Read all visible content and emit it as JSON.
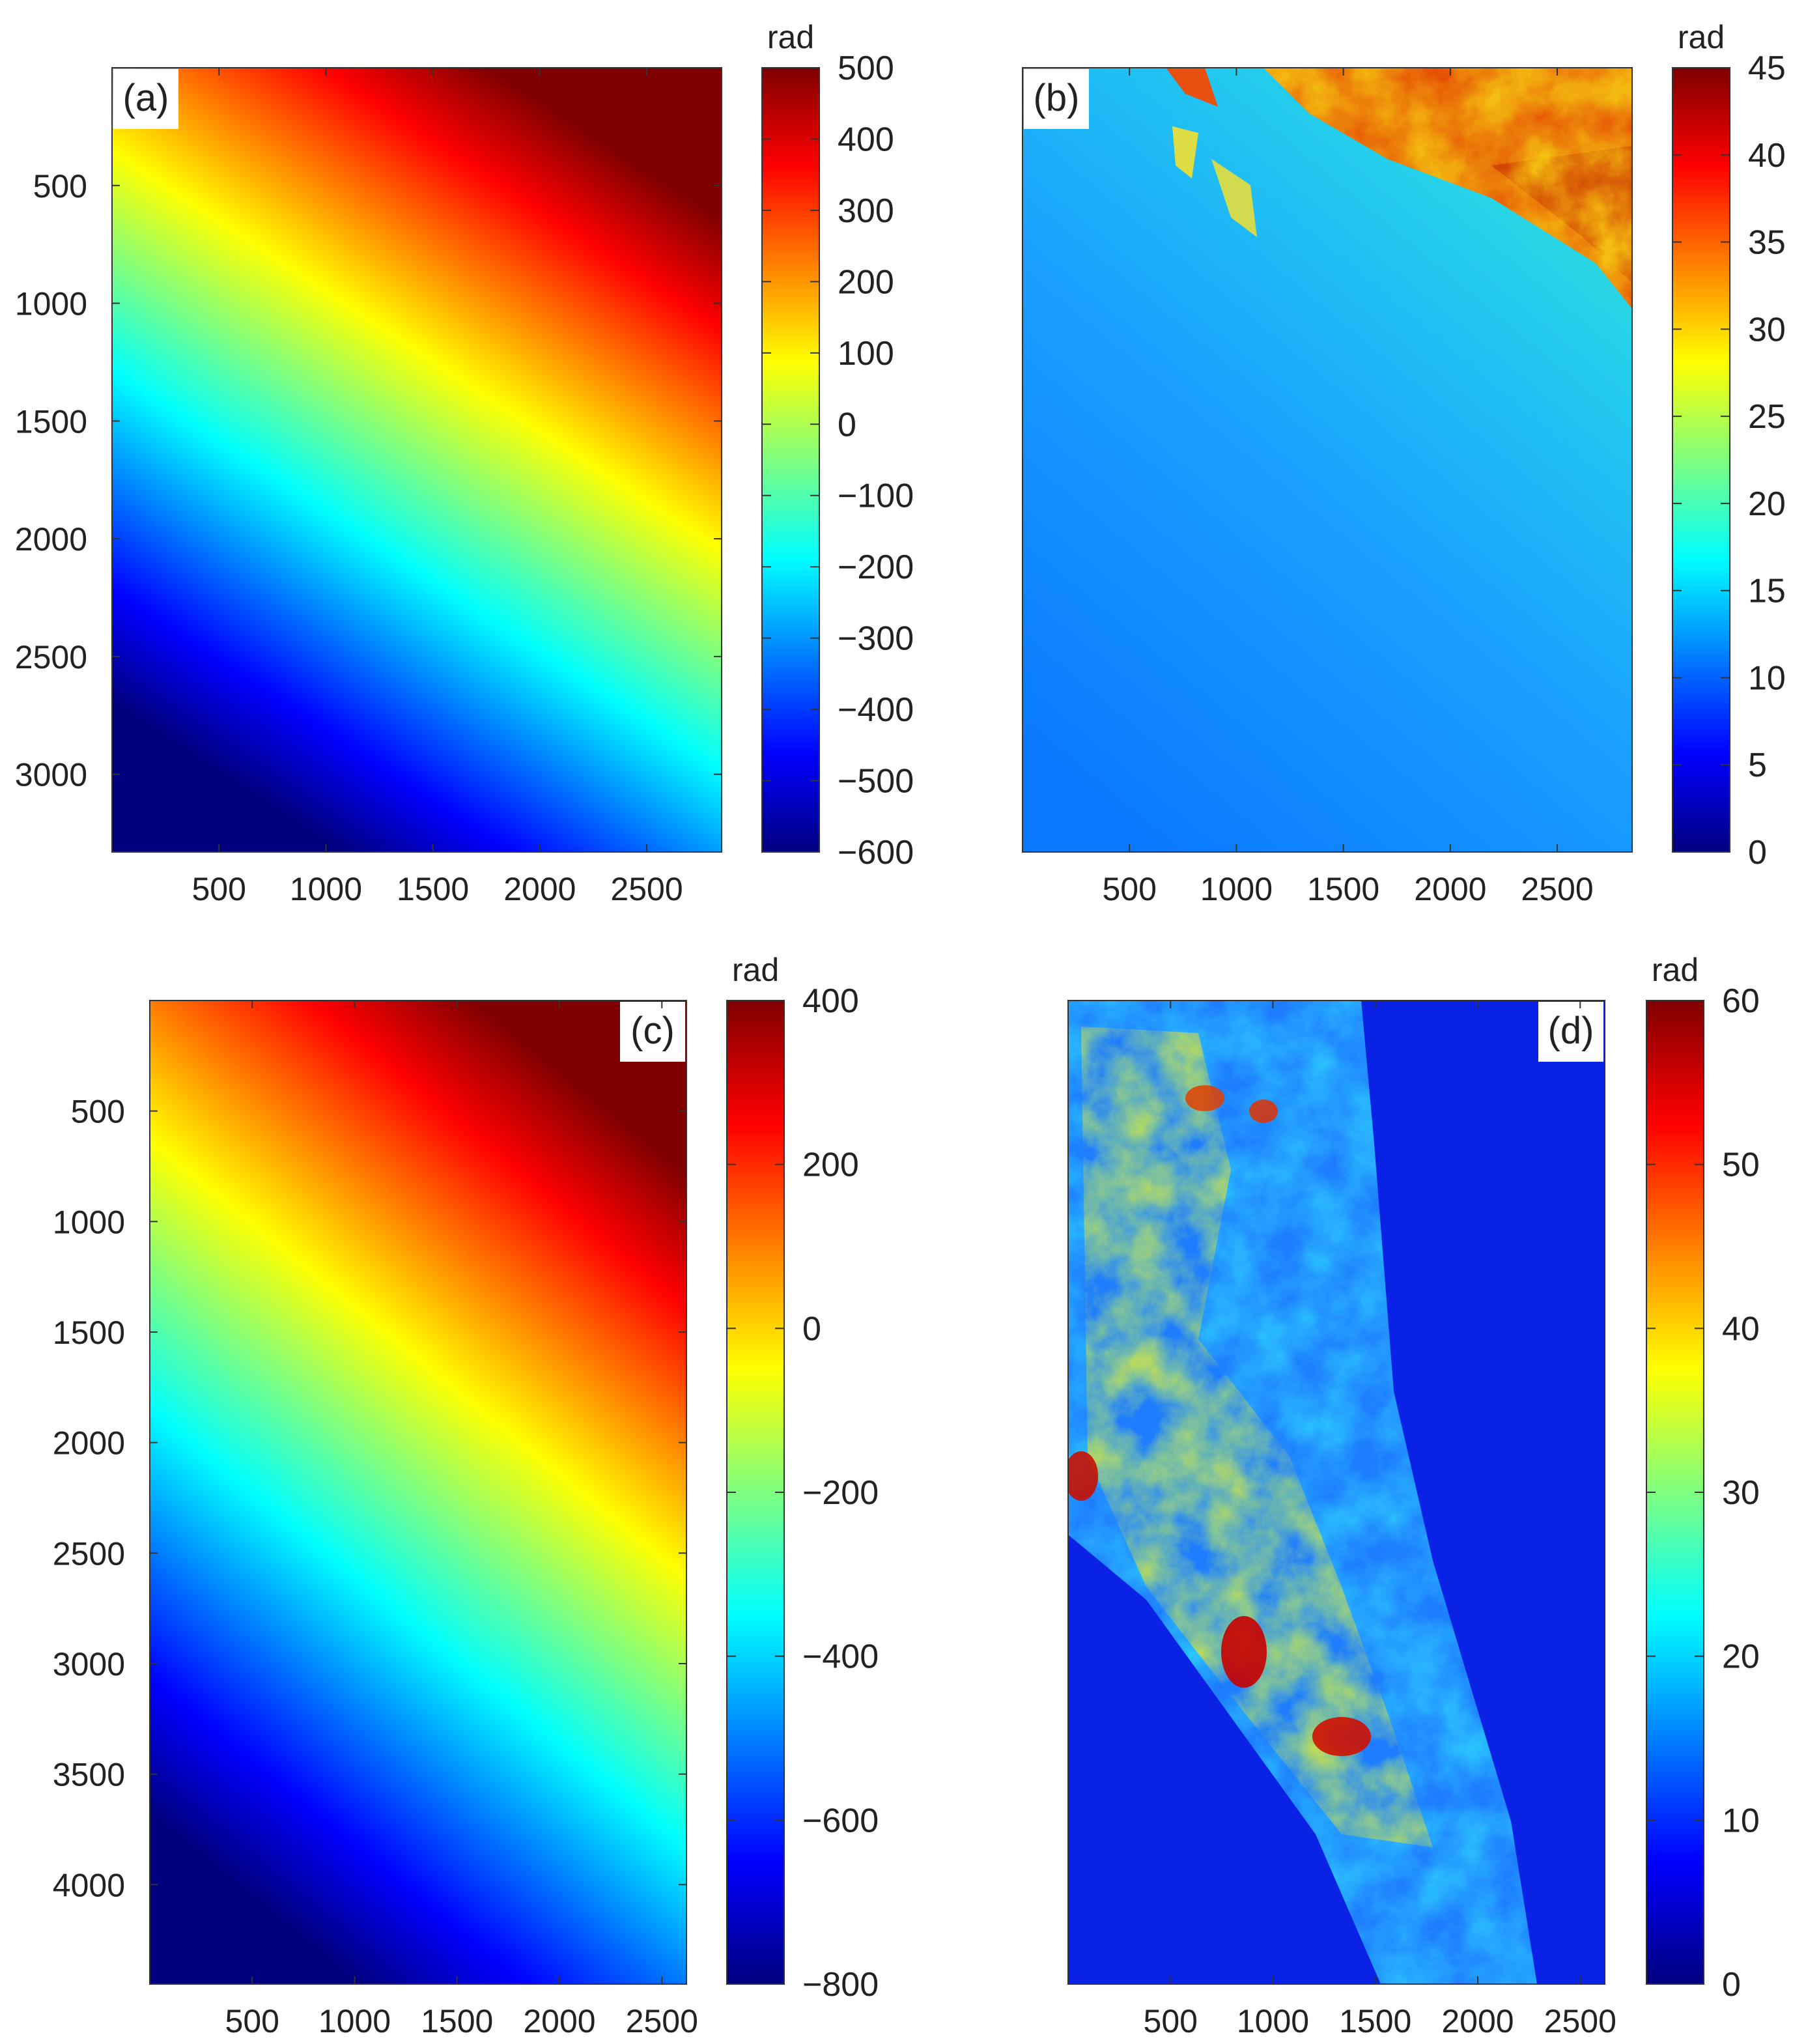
{
  "colors": {
    "jet_colormap": [
      "#00007f",
      "#0000ff",
      "#007fff",
      "#00ffff",
      "#7fff7f",
      "#ffff00",
      "#ff7f00",
      "#ff0000",
      "#7f0000"
    ],
    "axes_frame": "#333333",
    "panel_label_bg": "#ffffff"
  },
  "chart_data": [
    {
      "type": "heatmap",
      "panel_label": "(a)",
      "field": "gradient",
      "gradient_angle": 63,
      "x_ticks": [
        "500",
        "1000",
        "1500",
        "2000",
        "2500"
      ],
      "x_tick_values": [
        500,
        1000,
        1500,
        2000,
        2500
      ],
      "xlim": [
        0,
        2850
      ],
      "y_ticks": [
        "500",
        "1000",
        "1500",
        "2000",
        "2500",
        "3000"
      ],
      "y_tick_values": [
        500,
        1000,
        1500,
        2000,
        2500,
        3000
      ],
      "ylim": [
        0,
        3330
      ],
      "y_reversed": true,
      "colorbar": {
        "unit": "rad",
        "ticks": [
          "500",
          "400",
          "300",
          "200",
          "100",
          "0",
          "−100",
          "−200",
          "−300",
          "−400",
          "−500",
          "−600"
        ],
        "tick_values": [
          500,
          400,
          300,
          200,
          100,
          0,
          -100,
          -200,
          -300,
          -400,
          -500,
          -600
        ],
        "range": [
          -600,
          500
        ]
      }
    },
    {
      "type": "heatmap",
      "panel_label": "(b)",
      "field": "terrain-b",
      "x_ticks": [
        "500",
        "1000",
        "1500",
        "2000",
        "2500"
      ],
      "x_tick_values": [
        500,
        1000,
        1500,
        2000,
        2500
      ],
      "xlim": [
        0,
        2850
      ],
      "y_ticks": [],
      "ylim": [
        0,
        3330
      ],
      "y_reversed": true,
      "colorbar": {
        "unit": "rad",
        "ticks": [
          "45",
          "40",
          "35",
          "30",
          "25",
          "20",
          "15",
          "10",
          "5",
          "0"
        ],
        "tick_values": [
          45,
          40,
          35,
          30,
          25,
          20,
          15,
          10,
          5,
          0
        ],
        "range": [
          0,
          45
        ]
      }
    },
    {
      "type": "heatmap",
      "panel_label": "(c)",
      "field": "gradient",
      "gradient_angle": 66,
      "x_ticks": [
        "500",
        "1000",
        "1500",
        "2000",
        "2500"
      ],
      "x_tick_values": [
        500,
        1000,
        1500,
        2000,
        2500
      ],
      "xlim": [
        0,
        2620
      ],
      "y_ticks": [
        "500",
        "1000",
        "1500",
        "2000",
        "2500",
        "3000",
        "3500",
        "4000"
      ],
      "y_tick_values": [
        500,
        1000,
        1500,
        2000,
        2500,
        3000,
        3500,
        4000
      ],
      "ylim": [
        0,
        4450
      ],
      "y_reversed": true,
      "colorbar": {
        "unit": "rad",
        "ticks": [
          "400",
          "200",
          "0",
          "−200",
          "−400",
          "−600",
          "−800"
        ],
        "tick_values": [
          400,
          200,
          0,
          -200,
          -400,
          -600,
          -800
        ],
        "range": [
          -800,
          400
        ]
      }
    },
    {
      "type": "heatmap",
      "panel_label": "(d)",
      "field": "terrain-d",
      "x_ticks": [
        "500",
        "1000",
        "1500",
        "2000",
        "2500"
      ],
      "x_tick_values": [
        500,
        1000,
        1500,
        2000,
        2500
      ],
      "xlim": [
        0,
        2620
      ],
      "y_ticks": [],
      "ylim": [
        0,
        4450
      ],
      "y_reversed": true,
      "colorbar": {
        "unit": "rad",
        "ticks": [
          "60",
          "50",
          "40",
          "30",
          "20",
          "10",
          "0"
        ],
        "tick_values": [
          60,
          50,
          40,
          30,
          20,
          10,
          0
        ],
        "range": [
          0,
          60
        ]
      }
    }
  ]
}
